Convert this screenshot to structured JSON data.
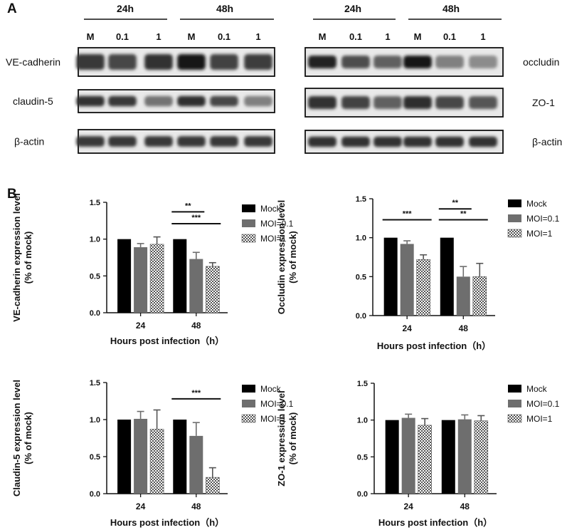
{
  "panel_labels": {
    "a": "A",
    "b": "B"
  },
  "blots": {
    "left": {
      "time_labels": [
        "24h",
        "48h"
      ],
      "lane_labels": [
        "M",
        "0.1",
        "1",
        "M",
        "0.1",
        "1"
      ],
      "rows": [
        "VE-cadherin",
        "claudin-5",
        "β-actin"
      ]
    },
    "right": {
      "time_labels": [
        "24h",
        "48h"
      ],
      "lane_labels": [
        "M",
        "0.1",
        "1",
        "M",
        "0.1",
        "1"
      ],
      "rows": [
        "occludin",
        "ZO-1",
        "β-actin"
      ]
    }
  },
  "chart_data": [
    {
      "type": "bar",
      "ylabel": "VE-cadherin  expression level\n(% of mock)",
      "xlabel": "Hours post infection（h）",
      "categories": [
        "24",
        "48"
      ],
      "ylim": [
        0,
        1.5
      ],
      "yticks": [
        "0.0",
        "0.5",
        "1.0",
        "1.5"
      ],
      "series": [
        {
          "name": "Mock",
          "values": [
            1.0,
            1.0
          ],
          "errors": [
            0,
            0
          ]
        },
        {
          "name": "MOI=0.1",
          "values": [
            0.89,
            0.73
          ],
          "errors": [
            0.05,
            0.09
          ]
        },
        {
          "name": "MOI=1",
          "values": [
            0.93,
            0.63
          ],
          "errors": [
            0.1,
            0.05
          ]
        }
      ],
      "significance": [
        {
          "label": "**",
          "group": 1,
          "from": 0,
          "to": 1,
          "y": 1.37
        },
        {
          "label": "***",
          "group": 1,
          "from": 0,
          "to": 2,
          "y": 1.21
        }
      ]
    },
    {
      "type": "bar",
      "ylabel": "Occludin expression level\n(% of mock)",
      "xlabel": "Hours post infection（h）",
      "categories": [
        "24",
        "48"
      ],
      "ylim": [
        0,
        1.5
      ],
      "yticks": [
        "0.0",
        "0.5",
        "1.0",
        "1.5"
      ],
      "series": [
        {
          "name": "Mock",
          "values": [
            1.0,
            1.0
          ],
          "errors": [
            0,
            0
          ]
        },
        {
          "name": "MOI=0.1",
          "values": [
            0.92,
            0.5
          ],
          "errors": [
            0.04,
            0.13
          ]
        },
        {
          "name": "MOI=1",
          "values": [
            0.72,
            0.5
          ],
          "errors": [
            0.06,
            0.17
          ]
        }
      ],
      "significance": [
        {
          "label": "***",
          "group": 0,
          "from": 0,
          "to": 2,
          "y": 1.23
        },
        {
          "label": "**",
          "group": 1,
          "from": 0,
          "to": 1,
          "y": 1.37
        },
        {
          "label": "**",
          "group": 1,
          "from": 0,
          "to": 2,
          "y": 1.23
        }
      ]
    },
    {
      "type": "bar",
      "ylabel": "Claudin-5 expression level\n(% of mock)",
      "xlabel": "Hours post infection（h）",
      "categories": [
        "24",
        "48"
      ],
      "ylim": [
        0,
        1.5
      ],
      "yticks": [
        "0.0",
        "0.5",
        "1.0",
        "1.5"
      ],
      "series": [
        {
          "name": "Mock",
          "values": [
            1.0,
            1.0
          ],
          "errors": [
            0,
            0
          ]
        },
        {
          "name": "MOI=0.1",
          "values": [
            1.01,
            0.78
          ],
          "errors": [
            0.1,
            0.18
          ]
        },
        {
          "name": "MOI=1",
          "values": [
            0.87,
            0.22
          ],
          "errors": [
            0.26,
            0.13
          ]
        }
      ],
      "significance": [
        {
          "label": "***",
          "group": 1,
          "from": 0,
          "to": 2,
          "y": 1.28
        }
      ]
    },
    {
      "type": "bar",
      "ylabel": "ZO-1 expression level\n(% of mock)",
      "xlabel": "Hours post infection（h）",
      "categories": [
        "24",
        "48"
      ],
      "ylim": [
        0,
        1.5
      ],
      "yticks": [
        "0.0",
        "0.5",
        "1.0",
        "1.5"
      ],
      "series": [
        {
          "name": "Mock",
          "values": [
            1.0,
            1.0
          ],
          "errors": [
            0,
            0
          ]
        },
        {
          "name": "MOI=0.1",
          "values": [
            1.03,
            1.01
          ],
          "errors": [
            0.05,
            0.06
          ]
        },
        {
          "name": "MOI=1",
          "values": [
            0.93,
            0.99
          ],
          "errors": [
            0.09,
            0.07
          ]
        }
      ],
      "significance": []
    }
  ]
}
